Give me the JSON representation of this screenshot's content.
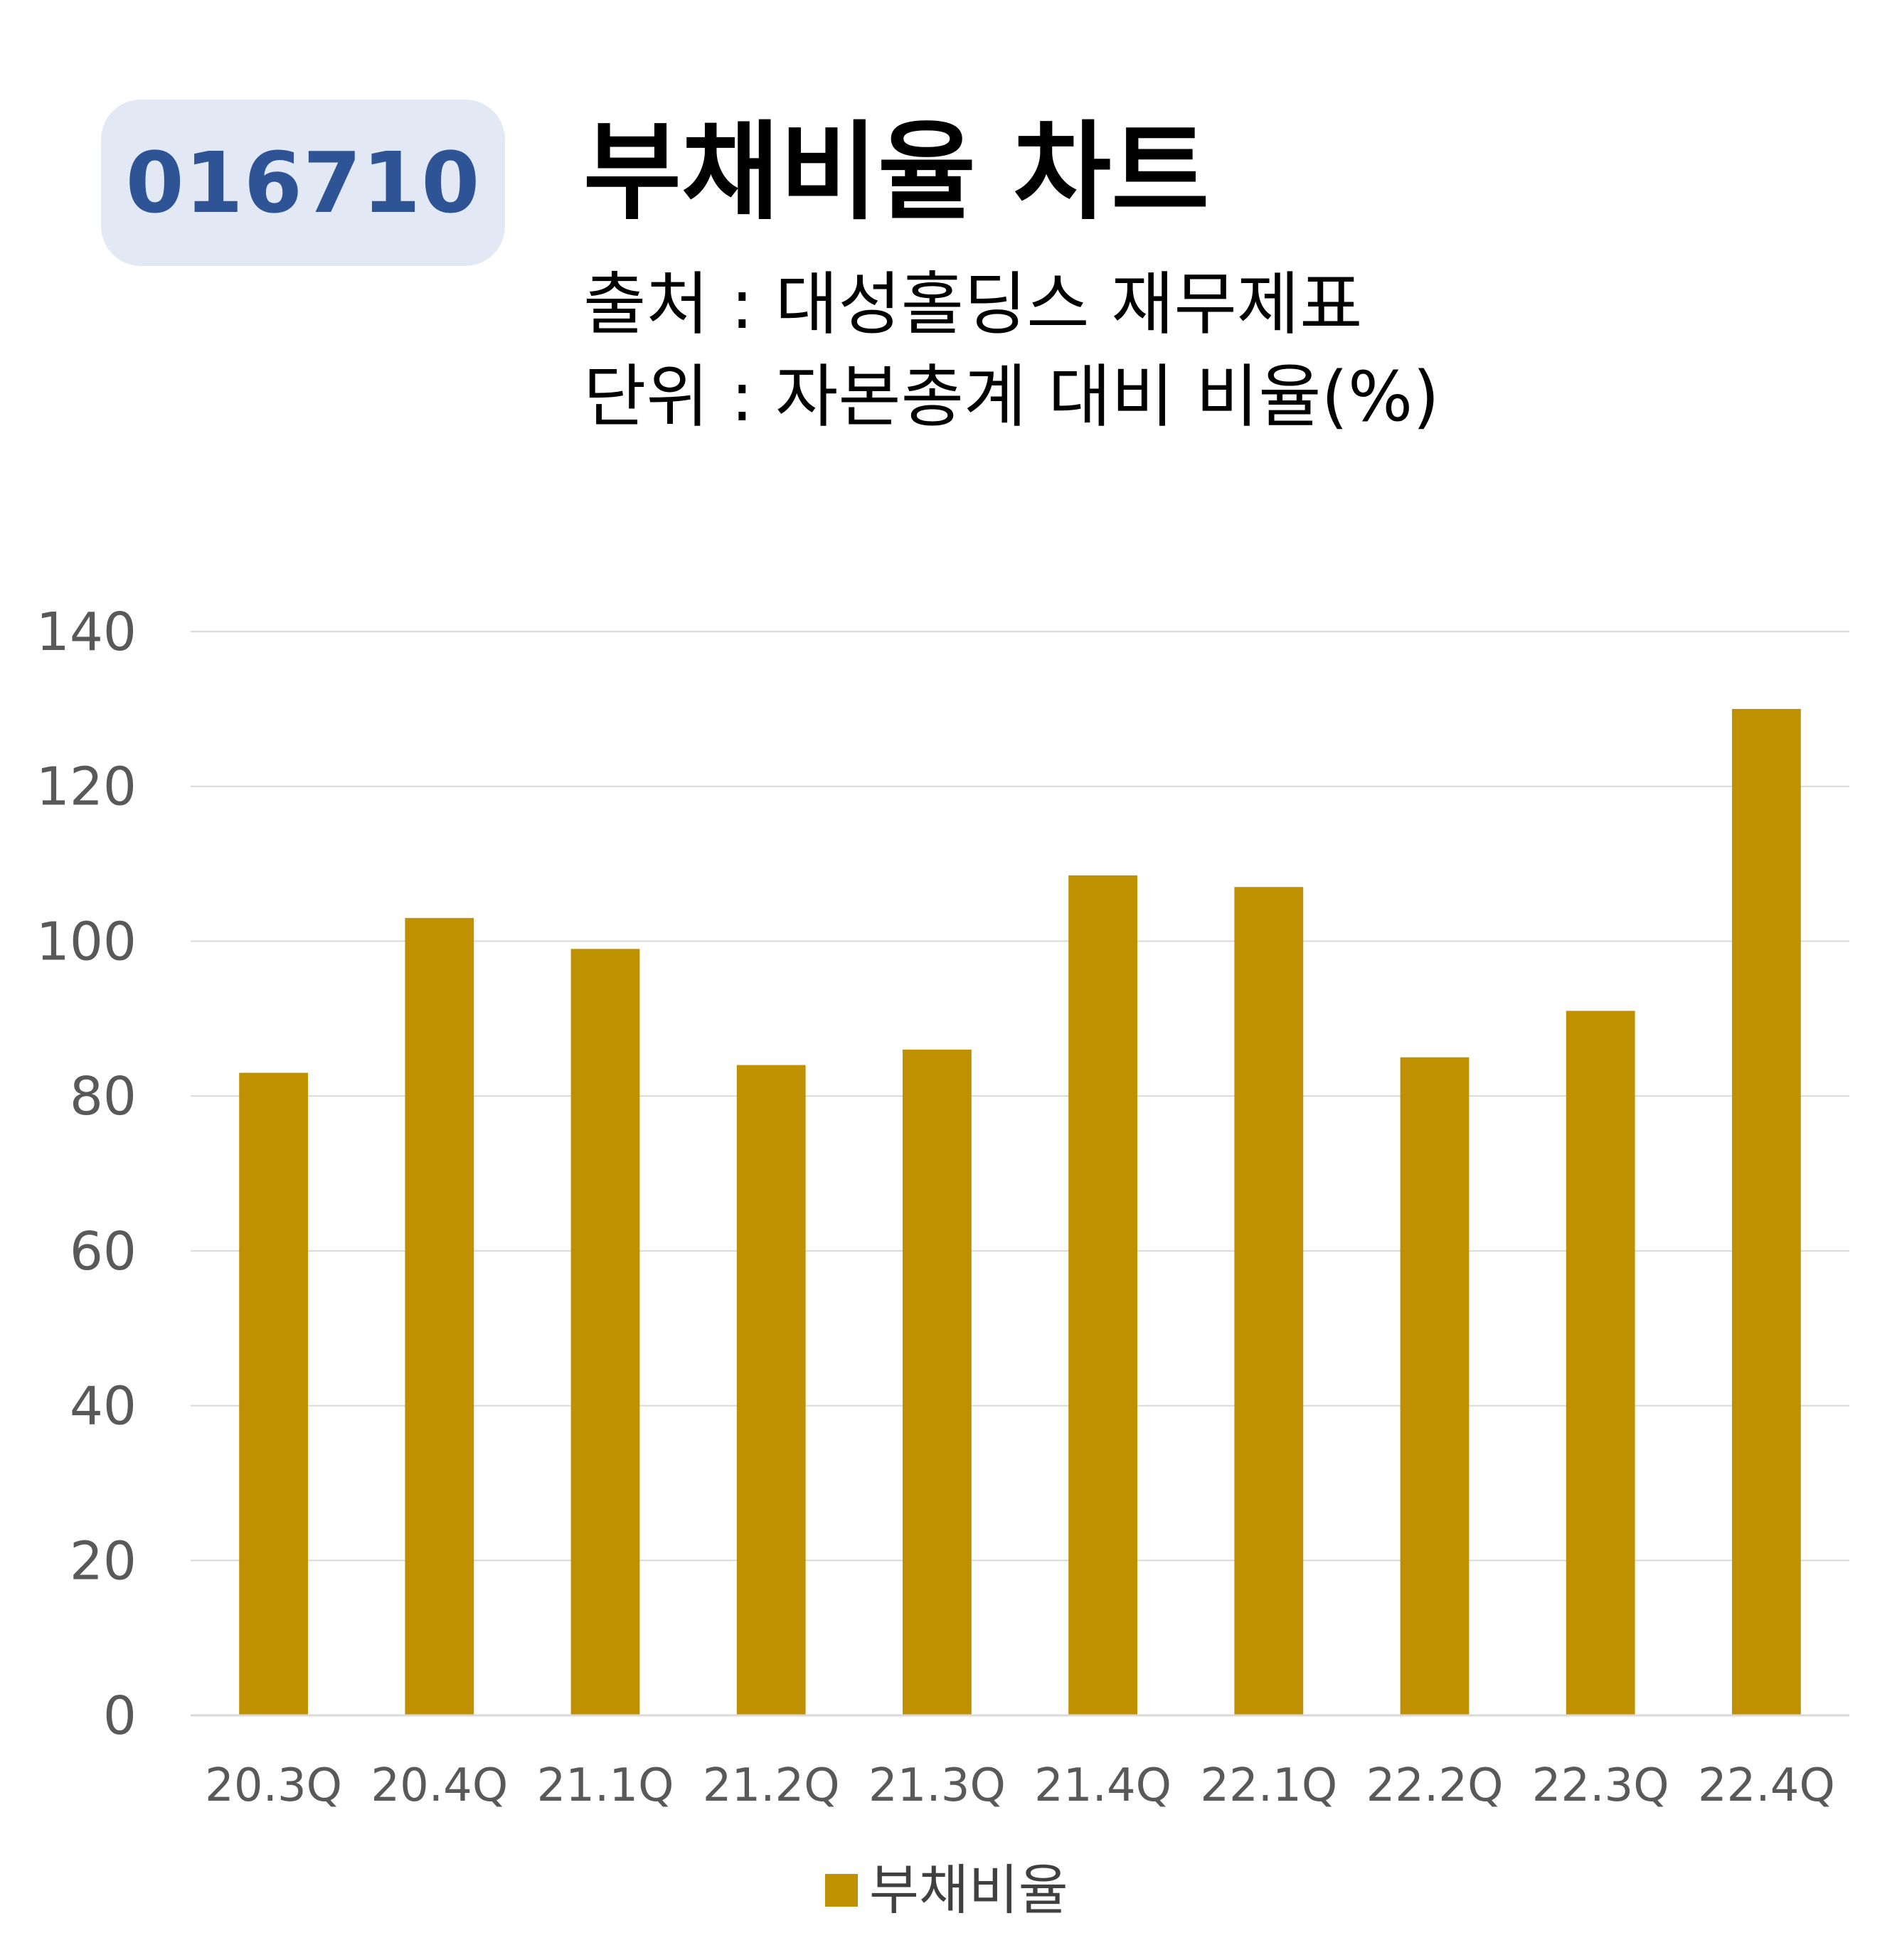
{
  "header": {
    "stock_code": "016710",
    "title": "부채비율 차트",
    "source": "출처 : 대성홀딩스 재무제표",
    "unit": "단위 : 자본총계 대비 비율(%)"
  },
  "colors": {
    "badge_bg": "#e2e8f4",
    "badge_text": "#2f5496",
    "bar": "#bf9000",
    "grid": "#d9d9d9",
    "axis_text": "#595959"
  },
  "chart_data": {
    "type": "bar",
    "categories": [
      "20.3Q",
      "20.4Q",
      "21.1Q",
      "21.2Q",
      "21.3Q",
      "21.4Q",
      "22.1Q",
      "22.2Q",
      "22.3Q",
      "22.4Q"
    ],
    "series": [
      {
        "name": "부채비율",
        "values": [
          83,
          103,
          99,
          84,
          86,
          108.5,
          107,
          85,
          91,
          130
        ],
        "color": "#bf9000"
      }
    ],
    "ylim": [
      0,
      140
    ],
    "yticks": [
      0,
      20,
      40,
      60,
      80,
      100,
      120,
      140
    ],
    "grid": true,
    "legend": "bottom"
  }
}
